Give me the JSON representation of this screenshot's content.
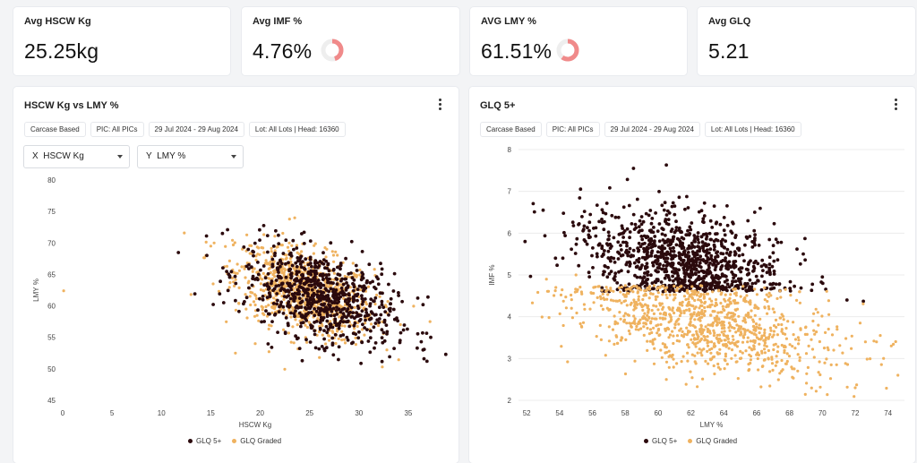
{
  "kpis": [
    {
      "label": "Avg HSCW Kg",
      "value": "25.25kg"
    },
    {
      "label": "Avg IMF %",
      "value": "4.76%",
      "ring_fraction": 0.45
    },
    {
      "label": "AVG LMY %",
      "value": "61.51%",
      "ring_fraction": 0.6
    },
    {
      "label": "Avg GLQ",
      "value": "5.21"
    }
  ],
  "colors": {
    "glq5": "#2b0a0d",
    "graded": "#efb25f",
    "ring": "#f08a8a",
    "ring_track": "#eeeeee",
    "grid": "#ececec"
  },
  "panels": [
    {
      "title": "HSCW Kg vs LMY %",
      "chips": [
        "Carcase Based",
        "PIC: All PICs",
        "29 Jul 2024 - 29 Aug 2024",
        "Lot: All Lots | Head: 16360"
      ],
      "x_select": {
        "prefix": "X",
        "value": "HSCW Kg"
      },
      "y_select": {
        "prefix": "Y",
        "value": "LMY %"
      }
    },
    {
      "title": "GLQ 5+",
      "chips": [
        "Carcase Based",
        "PIC: All PICs",
        "29 Jul 2024 - 29 Aug 2024",
        "Lot: All Lots | Head: 16360"
      ]
    }
  ],
  "legend": {
    "glq5": "GLQ 5+",
    "graded": "GLQ Graded"
  },
  "chart_data": [
    {
      "type": "scatter",
      "title": "HSCW Kg vs LMY %",
      "xlabel": "HSCW Kg",
      "ylabel": "LMY %",
      "xlim": [
        0,
        39
      ],
      "ylim": [
        45,
        80
      ],
      "xticks": [
        0,
        5,
        10,
        15,
        20,
        25,
        30,
        35
      ],
      "yticks": [
        45,
        50,
        55,
        60,
        65,
        70,
        75,
        80
      ],
      "grid": false,
      "legend_position": "bottom",
      "series": [
        {
          "name": "GLQ 5+",
          "color": "#2b0a0d",
          "distribution": {
            "n": 750,
            "x_mean": 26,
            "x_sd": 3.8,
            "y_mean": 61.5,
            "y_sd": 3.5,
            "slope": -0.45
          }
        },
        {
          "name": "GLQ Graded",
          "color": "#efb25f",
          "distribution": {
            "n": 900,
            "x_mean": 24.5,
            "x_sd": 3.5,
            "y_mean": 62.3,
            "y_sd": 3.3,
            "slope": -0.45
          }
        }
      ],
      "points": {
        "GLQ 5+": [
          [
            38.8,
            52.3
          ],
          [
            36.5,
            53.0
          ],
          [
            36.6,
            51.6
          ],
          [
            37.0,
            61.4
          ],
          [
            36.5,
            60.2
          ],
          [
            36.9,
            51.2
          ]
        ],
        "GLQ Graded": [
          [
            0.1,
            62.4
          ],
          [
            37.2,
            57.5
          ],
          [
            13,
            61.8
          ],
          [
            15,
            69.5
          ],
          [
            14.5,
            68.0
          ],
          [
            23.5,
            74.0
          ],
          [
            17.5,
            52.5
          ],
          [
            19.5,
            54.0
          ],
          [
            26,
            51.8
          ]
        ]
      }
    },
    {
      "type": "scatter",
      "title": "GLQ 5+",
      "xlabel": "LMY %",
      "ylabel": "IMF %",
      "xlim": [
        51.5,
        75
      ],
      "ylim": [
        2,
        8
      ],
      "xticks": [
        52,
        54,
        56,
        58,
        60,
        62,
        64,
        66,
        68,
        70,
        72,
        74
      ],
      "yticks": [
        2,
        3,
        4,
        5,
        6,
        7,
        8
      ],
      "grid": true,
      "legend_position": "bottom",
      "series": [
        {
          "name": "GLQ 5+",
          "color": "#2b0a0d",
          "distribution": {
            "n": 1000,
            "x_mean": 61.5,
            "x_sd": 3.0,
            "y_mean": 5.35,
            "y_sd": 0.6,
            "slope": -0.07,
            "y_min": 4.6
          }
        },
        {
          "name": "GLQ Graded",
          "color": "#efb25f",
          "distribution": {
            "n": 1000,
            "x_mean": 63,
            "x_sd": 3.8,
            "y_mean": 3.8,
            "y_sd": 0.55,
            "slope": -0.07,
            "y_max": 4.75
          }
        }
      ],
      "points": {
        "GLQ 5+": [
          [
            51.9,
            5.8
          ],
          [
            53.0,
            6.55
          ],
          [
            60.5,
            7.63
          ],
          [
            58.5,
            7.55
          ],
          [
            67.5,
            5.78
          ],
          [
            70,
            4.95
          ],
          [
            72.5,
            4.37
          ],
          [
            54.2,
            5.4
          ],
          [
            71.5,
            4.4
          ]
        ],
        "GLQ Graded": [
          [
            74.6,
            2.6
          ],
          [
            72.0,
            2.3
          ],
          [
            74.2,
            3.3
          ],
          [
            73.3,
            3.4
          ],
          [
            72.3,
            3.85
          ],
          [
            70.4,
            4.05
          ],
          [
            70.9,
            3.7
          ],
          [
            55.0,
            5.0
          ],
          [
            53.2,
            4.9
          ],
          [
            60.5,
            2.5
          ],
          [
            68.5,
            2.7
          ]
        ]
      }
    }
  ]
}
